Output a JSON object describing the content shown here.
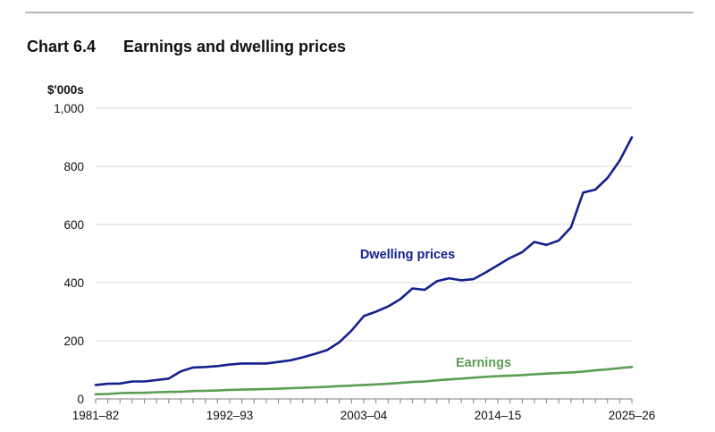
{
  "heading": {
    "number": "Chart 6.4",
    "title": "Earnings and dwelling prices"
  },
  "colors": {
    "dwelling": "#14218f",
    "earnings": "#5a9e52",
    "grid": "#d9d9d9",
    "axis": "#7f7f7f",
    "rule": "#b7b7b7"
  },
  "chart_data": {
    "type": "line",
    "title": "Earnings and dwelling prices",
    "ylabel": "$'000s",
    "xlabel": "",
    "ylim": [
      0,
      1000
    ],
    "yticks": [
      0,
      200,
      400,
      600,
      800,
      1000
    ],
    "ytick_labels": [
      "0",
      "200",
      "400",
      "600",
      "800",
      "1,000"
    ],
    "grid": true,
    "x": [
      "1981–82",
      "1982–83",
      "1983–84",
      "1984–85",
      "1985–86",
      "1986–87",
      "1987–88",
      "1988–89",
      "1989–90",
      "1990–91",
      "1991–92",
      "1992–93",
      "1993–94",
      "1994–95",
      "1995–96",
      "1996–97",
      "1997–98",
      "1998–99",
      "1999–00",
      "2000–01",
      "2001–02",
      "2002–03",
      "2003–04",
      "2004–05",
      "2005–06",
      "2006–07",
      "2007–08",
      "2008–09",
      "2009–10",
      "2010–11",
      "2011–12",
      "2012–13",
      "2013–14",
      "2014–15",
      "2015–16",
      "2016–17",
      "2017–18",
      "2018–19",
      "2019–20",
      "2020–21",
      "2021–22",
      "2022–23",
      "2023–24",
      "2024–25",
      "2025–26"
    ],
    "xtick_labels": [
      "1981–82",
      "1992–93",
      "2003–04",
      "2014–15",
      "2025–26"
    ],
    "series": [
      {
        "name": "Dwelling prices",
        "label_text": "Dwelling prices",
        "values": [
          48,
          52,
          53,
          60,
          60,
          65,
          70,
          95,
          108,
          110,
          113,
          118,
          122,
          122,
          122,
          127,
          133,
          143,
          155,
          168,
          195,
          235,
          285,
          300,
          318,
          343,
          380,
          375,
          405,
          415,
          408,
          412,
          435,
          460,
          485,
          505,
          540,
          530,
          545,
          590,
          710,
          720,
          760,
          820,
          900
        ]
      },
      {
        "name": "Earnings",
        "label_text": "Earnings",
        "values": [
          16,
          17,
          20,
          21,
          21,
          23,
          24,
          25,
          27,
          28,
          29,
          31,
          32,
          33,
          34,
          35,
          37,
          38,
          40,
          42,
          44,
          46,
          48,
          50,
          52,
          55,
          58,
          60,
          64,
          67,
          70,
          73,
          76,
          78,
          80,
          82,
          85,
          87,
          89,
          91,
          94,
          98,
          102,
          106,
          110
        ]
      }
    ]
  }
}
